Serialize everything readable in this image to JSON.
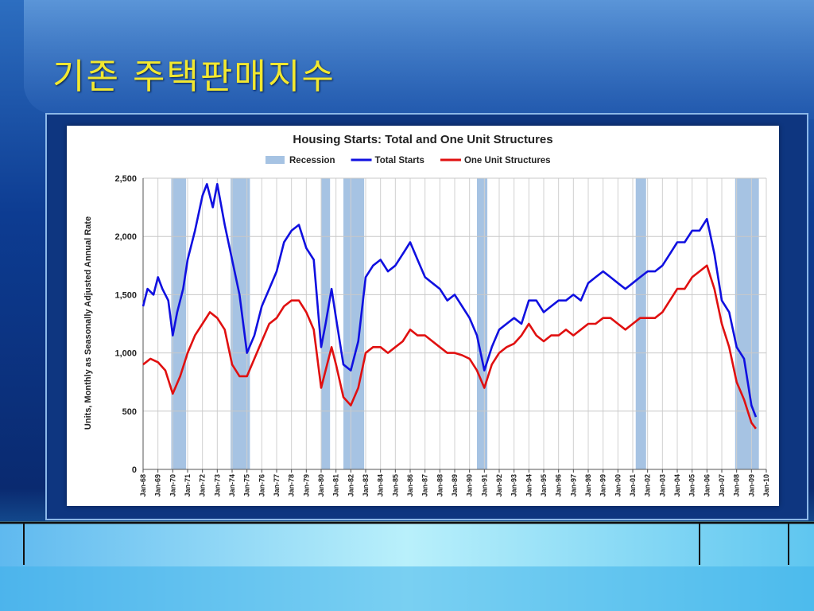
{
  "slide": {
    "title": "기존 주택판매지수"
  },
  "chart_data": {
    "type": "line",
    "title": "Housing Starts: Total and One Unit Structures",
    "ylabel": "Units, Monthly as Seasonally Adjusted Annual Rate",
    "xlabel": "",
    "ylim": [
      0,
      2500
    ],
    "yticks": [
      0,
      500,
      1000,
      1500,
      2000,
      2500
    ],
    "ytick_labels": [
      "0",
      "500",
      "1,000",
      "1,500",
      "2,000",
      "2,500"
    ],
    "xlim": [
      1968.0,
      2010.0
    ],
    "xtick_labels": [
      "Jan-68",
      "Jan-69",
      "Jan-70",
      "Jan-71",
      "Jan-72",
      "Jan-73",
      "Jan-74",
      "Jan-75",
      "Jan-76",
      "Jan-77",
      "Jan-78",
      "Jan-79",
      "Jan-80",
      "Jan-81",
      "Jan-82",
      "Jan-83",
      "Jan-84",
      "Jan-85",
      "Jan-86",
      "Jan-87",
      "Jan-88",
      "Jan-89",
      "Jan-90",
      "Jan-91",
      "Jan-92",
      "Jan-93",
      "Jan-94",
      "Jan-95",
      "Jan-96",
      "Jan-97",
      "Jan-98",
      "Jan-99",
      "Jan-00",
      "Jan-01",
      "Jan-02",
      "Jan-03",
      "Jan-04",
      "Jan-05",
      "Jan-06",
      "Jan-07",
      "Jan-08",
      "Jan-09",
      "Jan-10"
    ],
    "grid": true,
    "legend": [
      {
        "name": "Recession",
        "kind": "area",
        "color": "#a6c3e3"
      },
      {
        "name": "Total Starts",
        "kind": "line",
        "color": "#1010e0"
      },
      {
        "name": "One Unit Structures",
        "kind": "line",
        "color": "#e01010"
      }
    ],
    "recessions": [
      [
        1969.9,
        1970.9
      ],
      [
        1973.9,
        1975.2
      ],
      [
        1980.0,
        1980.6
      ],
      [
        1981.5,
        1982.9
      ],
      [
        1990.5,
        1991.2
      ],
      [
        2001.2,
        2001.9
      ],
      [
        2007.9,
        2009.5
      ]
    ],
    "series": [
      {
        "name": "Total Starts",
        "color": "#1010e0",
        "x": [
          1968.0,
          1968.3,
          1968.7,
          1969.0,
          1969.3,
          1969.7,
          1970.0,
          1970.3,
          1970.7,
          1971.0,
          1971.5,
          1972.0,
          1972.3,
          1972.7,
          1973.0,
          1973.5,
          1974.0,
          1974.5,
          1975.0,
          1975.5,
          1976.0,
          1976.5,
          1977.0,
          1977.5,
          1978.0,
          1978.5,
          1979.0,
          1979.5,
          1980.0,
          1980.3,
          1980.7,
          1981.0,
          1981.5,
          1982.0,
          1982.5,
          1983.0,
          1983.5,
          1984.0,
          1984.5,
          1985.0,
          1985.5,
          1986.0,
          1986.5,
          1987.0,
          1987.5,
          1988.0,
          1988.5,
          1989.0,
          1989.5,
          1990.0,
          1990.5,
          1991.0,
          1991.5,
          1992.0,
          1992.5,
          1993.0,
          1993.5,
          1994.0,
          1994.5,
          1995.0,
          1995.5,
          1996.0,
          1996.5,
          1997.0,
          1997.5,
          1998.0,
          1998.5,
          1999.0,
          1999.5,
          2000.0,
          2000.5,
          2001.0,
          2001.5,
          2002.0,
          2002.5,
          2003.0,
          2003.5,
          2004.0,
          2004.5,
          2005.0,
          2005.5,
          2006.0,
          2006.5,
          2007.0,
          2007.5,
          2008.0,
          2008.5,
          2009.0,
          2009.3
        ],
        "y": [
          1400,
          1550,
          1500,
          1650,
          1550,
          1450,
          1150,
          1350,
          1550,
          1800,
          2050,
          2350,
          2450,
          2250,
          2450,
          2100,
          1800,
          1500,
          1000,
          1150,
          1400,
          1550,
          1700,
          1950,
          2050,
          2100,
          1900,
          1800,
          1050,
          1250,
          1550,
          1300,
          900,
          850,
          1100,
          1650,
          1750,
          1800,
          1700,
          1750,
          1850,
          1950,
          1800,
          1650,
          1600,
          1550,
          1450,
          1500,
          1400,
          1300,
          1150,
          850,
          1050,
          1200,
          1250,
          1300,
          1250,
          1450,
          1450,
          1350,
          1400,
          1450,
          1450,
          1500,
          1450,
          1600,
          1650,
          1700,
          1650,
          1600,
          1550,
          1600,
          1650,
          1700,
          1700,
          1750,
          1850,
          1950,
          1950,
          2050,
          2050,
          2150,
          1850,
          1450,
          1350,
          1050,
          950,
          550,
          450
        ]
      },
      {
        "name": "One Unit Structures",
        "color": "#e01010",
        "x": [
          1968.0,
          1968.5,
          1969.0,
          1969.5,
          1970.0,
          1970.5,
          1971.0,
          1971.5,
          1972.0,
          1972.5,
          1973.0,
          1973.5,
          1974.0,
          1974.5,
          1975.0,
          1975.5,
          1976.0,
          1976.5,
          1977.0,
          1977.5,
          1978.0,
          1978.5,
          1979.0,
          1979.5,
          1980.0,
          1980.3,
          1980.7,
          1981.0,
          1981.5,
          1982.0,
          1982.5,
          1983.0,
          1983.5,
          1984.0,
          1984.5,
          1985.0,
          1985.5,
          1986.0,
          1986.5,
          1987.0,
          1987.5,
          1988.0,
          1988.5,
          1989.0,
          1989.5,
          1990.0,
          1990.5,
          1991.0,
          1991.5,
          1992.0,
          1992.5,
          1993.0,
          1993.5,
          1994.0,
          1994.5,
          1995.0,
          1995.5,
          1996.0,
          1996.5,
          1997.0,
          1997.5,
          1998.0,
          1998.5,
          1999.0,
          1999.5,
          2000.0,
          2000.5,
          2001.0,
          2001.5,
          2002.0,
          2002.5,
          2003.0,
          2003.5,
          2004.0,
          2004.5,
          2005.0,
          2005.5,
          2006.0,
          2006.5,
          2007.0,
          2007.5,
          2008.0,
          2008.5,
          2009.0,
          2009.3
        ],
        "y": [
          900,
          950,
          920,
          850,
          650,
          800,
          1000,
          1150,
          1250,
          1350,
          1300,
          1200,
          900,
          800,
          800,
          950,
          1100,
          1250,
          1300,
          1400,
          1450,
          1450,
          1350,
          1200,
          700,
          850,
          1050,
          900,
          620,
          550,
          700,
          1000,
          1050,
          1050,
          1000,
          1050,
          1100,
          1200,
          1150,
          1150,
          1100,
          1050,
          1000,
          1000,
          980,
          950,
          850,
          700,
          900,
          1000,
          1050,
          1080,
          1150,
          1250,
          1150,
          1100,
          1150,
          1150,
          1200,
          1150,
          1200,
          1250,
          1250,
          1300,
          1300,
          1250,
          1200,
          1250,
          1300,
          1300,
          1300,
          1350,
          1450,
          1550,
          1550,
          1650,
          1700,
          1750,
          1550,
          1250,
          1050,
          750,
          600,
          400,
          350
        ]
      }
    ]
  }
}
